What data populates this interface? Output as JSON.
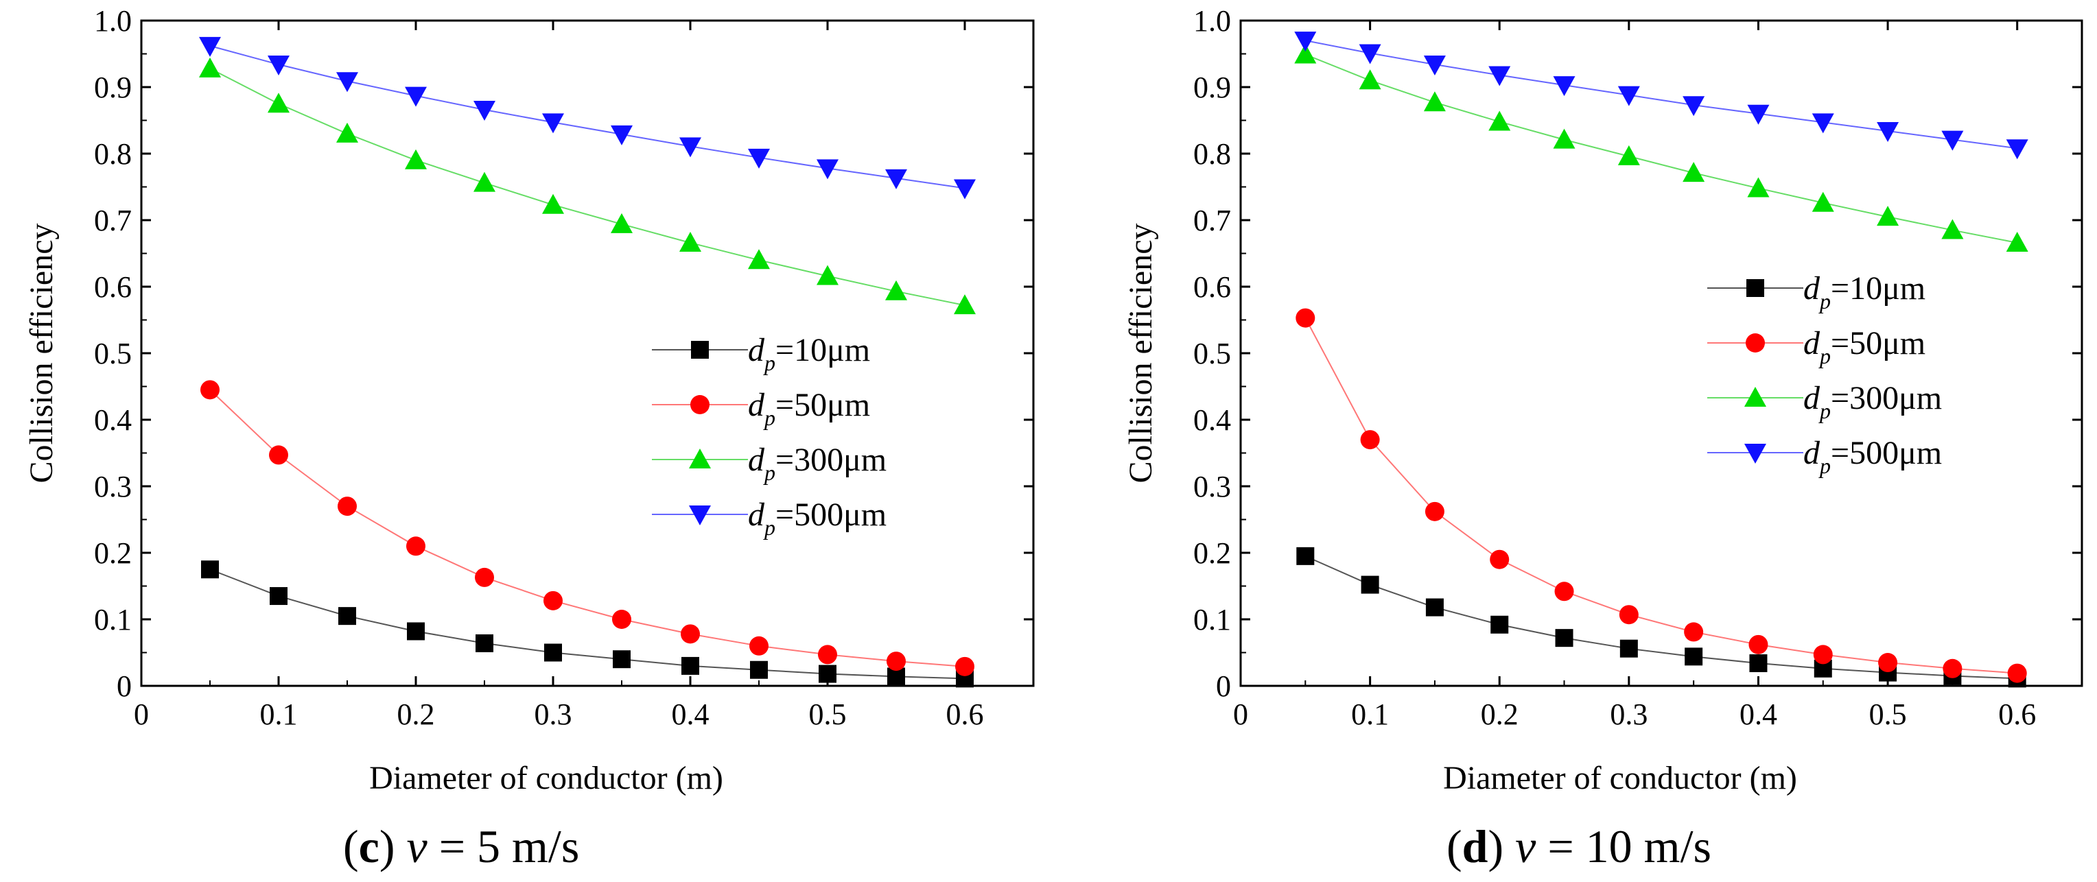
{
  "chart_data": [
    {
      "type": "line",
      "panel_id": "c",
      "caption": {
        "open": "(",
        "letter": "c",
        "close": ")",
        "var": "ν",
        "rest": " = 5 m/s"
      },
      "xlabel": "Diameter of conductor (m)",
      "ylabel": "Collision efficiency",
      "xlim": [
        0,
        0.65
      ],
      "ylim": [
        0,
        1.0
      ],
      "xticks": [
        0,
        0.1,
        0.2,
        0.3,
        0.4,
        0.5,
        0.6
      ],
      "xtick_labels": [
        "0",
        "0.1",
        "0.2",
        "0.3",
        "0.4",
        "0.5",
        "0.6"
      ],
      "yticks": [
        0,
        0.1,
        0.2,
        0.3,
        0.4,
        0.5,
        0.6,
        0.7,
        0.8,
        0.9,
        1.0
      ],
      "ytick_labels": [
        "0",
        "0.1",
        "0.2",
        "0.3",
        "0.4",
        "0.5",
        "0.6",
        "0.7",
        "0.8",
        "0.9",
        "1.0"
      ],
      "legend_position": "center-right",
      "x": [
        0.05,
        0.1,
        0.15,
        0.2,
        0.25,
        0.3,
        0.35,
        0.4,
        0.45,
        0.5,
        0.55,
        0.6
      ],
      "series": [
        {
          "name": "dp=10μm",
          "d": "d",
          "sub": "p",
          "rest": "=10μm",
          "marker": "square",
          "color": "#000000",
          "line_color": "#555555",
          "values": [
            0.175,
            0.135,
            0.105,
            0.082,
            0.064,
            0.05,
            0.04,
            0.03,
            0.024,
            0.018,
            0.014,
            0.011
          ]
        },
        {
          "name": "dp=50μm",
          "d": "d",
          "sub": "p",
          "rest": "=50μm",
          "marker": "circle",
          "color": "#ff0000",
          "line_color": "#ff7777",
          "values": [
            0.445,
            0.347,
            0.27,
            0.21,
            0.163,
            0.128,
            0.1,
            0.078,
            0.06,
            0.047,
            0.037,
            0.029
          ]
        },
        {
          "name": "dp=300μm",
          "d": "d",
          "sub": "p",
          "rest": "=300μm",
          "marker": "triangle-up",
          "color": "#00dd00",
          "line_color": "#66dd66",
          "values": [
            0.928,
            0.875,
            0.83,
            0.79,
            0.756,
            0.723,
            0.694,
            0.666,
            0.64,
            0.616,
            0.593,
            0.572
          ]
        },
        {
          "name": "dp=500μm",
          "d": "d",
          "sub": "p",
          "rest": "=500μm",
          "marker": "triangle-down",
          "color": "#1010ff",
          "line_color": "#6666ff",
          "values": [
            0.962,
            0.934,
            0.909,
            0.887,
            0.866,
            0.847,
            0.829,
            0.811,
            0.794,
            0.778,
            0.763,
            0.748
          ]
        }
      ]
    },
    {
      "type": "line",
      "panel_id": "d",
      "caption": {
        "open": "(",
        "letter": "d",
        "close": ")",
        "var": "ν",
        "rest": " = 10 m/s"
      },
      "xlabel": "Diameter of conductor (m)",
      "ylabel": "Collision efficiency",
      "xlim": [
        0,
        0.65
      ],
      "ylim": [
        0,
        1.0
      ],
      "xticks": [
        0,
        0.1,
        0.2,
        0.3,
        0.4,
        0.5,
        0.6
      ],
      "xtick_labels": [
        "0",
        "0.1",
        "0.2",
        "0.3",
        "0.4",
        "0.5",
        "0.6"
      ],
      "yticks": [
        0,
        0.1,
        0.2,
        0.3,
        0.4,
        0.5,
        0.6,
        0.7,
        0.8,
        0.9,
        1.0
      ],
      "ytick_labels": [
        "0",
        "0.1",
        "0.2",
        "0.3",
        "0.4",
        "0.5",
        "0.6",
        "0.7",
        "0.8",
        "0.9",
        "1.0"
      ],
      "legend_position": "center-right",
      "x": [
        0.05,
        0.1,
        0.15,
        0.2,
        0.25,
        0.3,
        0.35,
        0.4,
        0.45,
        0.5,
        0.55,
        0.6
      ],
      "series": [
        {
          "name": "dp=10μm",
          "d": "d",
          "sub": "p",
          "rest": "=10μm",
          "marker": "square",
          "color": "#000000",
          "line_color": "#555555",
          "values": [
            0.195,
            0.152,
            0.118,
            0.092,
            0.072,
            0.056,
            0.044,
            0.034,
            0.026,
            0.02,
            0.015,
            0.011
          ]
        },
        {
          "name": "dp=50μm",
          "d": "d",
          "sub": "p",
          "rest": "=50μm",
          "marker": "circle",
          "color": "#ff0000",
          "line_color": "#ff7777",
          "values": [
            0.553,
            0.37,
            0.262,
            0.19,
            0.142,
            0.107,
            0.081,
            0.062,
            0.047,
            0.035,
            0.026,
            0.019
          ]
        },
        {
          "name": "dp=300μm",
          "d": "d",
          "sub": "p",
          "rest": "=300μm",
          "marker": "triangle-up",
          "color": "#00dd00",
          "line_color": "#66dd66",
          "values": [
            0.949,
            0.91,
            0.877,
            0.848,
            0.821,
            0.796,
            0.771,
            0.748,
            0.726,
            0.705,
            0.685,
            0.666
          ]
        },
        {
          "name": "dp=500μm",
          "d": "d",
          "sub": "p",
          "rest": "=500μm",
          "marker": "triangle-down",
          "color": "#1010ff",
          "line_color": "#6666ff",
          "values": [
            0.97,
            0.951,
            0.934,
            0.918,
            0.903,
            0.888,
            0.873,
            0.86,
            0.847,
            0.834,
            0.821,
            0.808
          ]
        }
      ]
    }
  ]
}
